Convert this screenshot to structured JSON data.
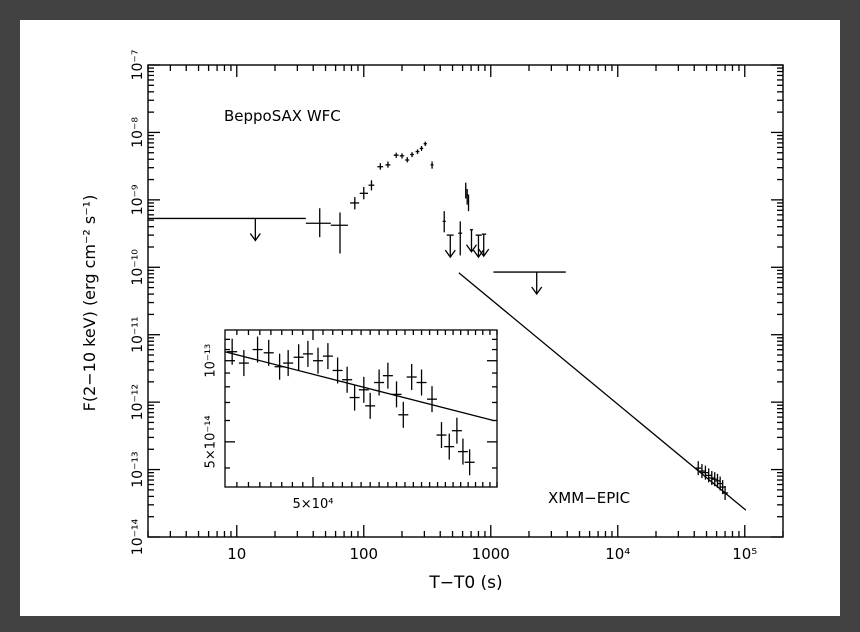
{
  "chart_data": {
    "type": "scatter",
    "title": "",
    "xlabel": "T−T0 (s)",
    "ylabel": "F(2−10 keV) (erg cm⁻² s⁻¹)",
    "xscale": "log",
    "yscale": "log",
    "xlim": [
      2,
      200000
    ],
    "ylim": [
      1e-14,
      1e-07
    ],
    "x_ticks": [
      {
        "value": 10,
        "label": "10"
      },
      {
        "value": 100,
        "label": "100"
      },
      {
        "value": 1000,
        "label": "1000"
      },
      {
        "value": 10000,
        "label": "10⁴"
      },
      {
        "value": 100000,
        "label": "10⁵"
      }
    ],
    "y_ticks": [
      {
        "value": 1e-14,
        "label": "10⁻¹⁴"
      },
      {
        "value": 1e-13,
        "label": "10⁻¹³"
      },
      {
        "value": 1e-12,
        "label": "10⁻¹²"
      },
      {
        "value": 1e-11,
        "label": "10⁻¹¹"
      },
      {
        "value": 1e-10,
        "label": "10⁻¹⁰"
      },
      {
        "value": 1e-09,
        "label": "10⁻⁹"
      },
      {
        "value": 1e-08,
        "label": "10⁻⁸"
      },
      {
        "value": 1e-07,
        "label": "10⁻⁷"
      }
    ],
    "annotations": {
      "wfc": "BeppoSAX WFC",
      "epic": "XMM−EPIC"
    },
    "series": [
      {
        "name": "BeppoSAX WFC detections",
        "points": [
          {
            "x": 45,
            "y": 4.5e-10,
            "xlo": 35,
            "xhi": 55,
            "ylo": 2.8e-10,
            "yhi": 7.5e-10
          },
          {
            "x": 65,
            "y": 4.2e-10,
            "xlo": 55,
            "xhi": 75,
            "ylo": 1.6e-10,
            "yhi": 6.5e-10
          },
          {
            "x": 85,
            "y": 9e-10,
            "xlo": 78,
            "xhi": 92,
            "ylo": 7.2e-10,
            "yhi": 1.1e-09
          },
          {
            "x": 100,
            "y": 1.25e-09,
            "xlo": 93,
            "xhi": 108,
            "ylo": 1.02e-09,
            "yhi": 1.55e-09
          },
          {
            "x": 115,
            "y": 1.65e-09,
            "xlo": 109,
            "xhi": 121,
            "ylo": 1.38e-09,
            "yhi": 1.95e-09
          },
          {
            "x": 135,
            "y": 3.1e-09,
            "xlo": 128,
            "xhi": 142,
            "ylo": 2.8e-09,
            "yhi": 3.5e-09
          },
          {
            "x": 155,
            "y": 3.3e-09,
            "xlo": 148,
            "xhi": 162,
            "ylo": 3e-09,
            "yhi": 3.7e-09
          },
          {
            "x": 180,
            "y": 4.6e-09,
            "xlo": 172,
            "xhi": 188,
            "ylo": 4.2e-09,
            "yhi": 5e-09
          },
          {
            "x": 200,
            "y": 4.5e-09,
            "xlo": 192,
            "xhi": 208,
            "ylo": 4.1e-09,
            "yhi": 4.9e-09
          },
          {
            "x": 220,
            "y": 3.9e-09,
            "xlo": 212,
            "xhi": 228,
            "ylo": 3.6e-09,
            "yhi": 4.3e-09
          },
          {
            "x": 240,
            "y": 4.7e-09,
            "xlo": 232,
            "xhi": 248,
            "ylo": 4.3e-09,
            "yhi": 5.1e-09
          },
          {
            "x": 265,
            "y": 5.2e-09,
            "xlo": 256,
            "xhi": 274,
            "ylo": 4.8e-09,
            "yhi": 5.6e-09
          },
          {
            "x": 285,
            "y": 5.8e-09,
            "xlo": 276,
            "xhi": 294,
            "ylo": 5.3e-09,
            "yhi": 6.3e-09
          },
          {
            "x": 305,
            "y": 6.8e-09,
            "xlo": 296,
            "xhi": 314,
            "ylo": 6.3e-09,
            "yhi": 7.3e-09
          },
          {
            "x": 345,
            "y": 3.3e-09,
            "xlo": 336,
            "xhi": 354,
            "ylo": 2.9e-09,
            "yhi": 3.7e-09
          },
          {
            "x": 430,
            "y": 4.8e-10,
            "xlo": 418,
            "xhi": 442,
            "ylo": 3.3e-10,
            "yhi": 6.8e-10
          },
          {
            "x": 575,
            "y": 3.2e-10,
            "xlo": 555,
            "xhi": 595,
            "ylo": 1.5e-10,
            "yhi": 4.8e-10
          },
          {
            "x": 635,
            "y": 1.55e-09,
            "xlo": 628,
            "xhi": 642,
            "ylo": 1.05e-09,
            "yhi": 1.8e-09
          },
          {
            "x": 652,
            "y": 1.2e-09,
            "xlo": 645,
            "xhi": 659,
            "ylo": 8.5e-10,
            "yhi": 1.45e-09
          },
          {
            "x": 668,
            "y": 9.5e-10,
            "xlo": 661,
            "xhi": 675,
            "ylo": 6.8e-10,
            "yhi": 1.2e-09
          }
        ]
      },
      {
        "name": "Upper limits",
        "points": [
          {
            "x": 14,
            "y": 5.3e-10,
            "xlo": 2,
            "xhi": 35
          },
          {
            "x": 480,
            "y": 3e-10,
            "xlo": 450,
            "xhi": 510
          },
          {
            "x": 705,
            "y": 3.6e-10,
            "xlo": 685,
            "xhi": 725
          },
          {
            "x": 800,
            "y": 3e-10,
            "xlo": 760,
            "xhi": 850
          },
          {
            "x": 880,
            "y": 3.1e-10,
            "xlo": 850,
            "xhi": 920
          },
          {
            "x": 2300,
            "y": 8.5e-11,
            "xlo": 1050,
            "xhi": 3900
          }
        ]
      },
      {
        "name": "XMM−EPIC",
        "points": [
          {
            "x": 43000,
            "y": 1.05e-13
          },
          {
            "x": 46000,
            "y": 9.5e-14
          },
          {
            "x": 49000,
            "y": 9e-14
          },
          {
            "x": 52000,
            "y": 8.2e-14
          },
          {
            "x": 55000,
            "y": 7.5e-14
          },
          {
            "x": 58000,
            "y": 7.2e-14
          },
          {
            "x": 61000,
            "y": 6.8e-14
          },
          {
            "x": 64000,
            "y": 6.2e-14
          },
          {
            "x": 67000,
            "y": 5.5e-14
          },
          {
            "x": 70000,
            "y": 4.5e-14
          }
        ]
      }
    ],
    "model_line": {
      "name": "Power-law decay",
      "points": [
        [
          560,
          8.3e-11
        ],
        [
          102000,
          2.5e-14
        ]
      ]
    },
    "inset": {
      "xscale": "log",
      "yscale": "log",
      "xlim": [
        42000,
        72000
      ],
      "ylim": [
        3.4e-14,
        1.3e-13
      ],
      "x_tick": {
        "value": 50000,
        "label": "5×10⁴"
      },
      "y_ticks": [
        {
          "value": 1e-13,
          "label": "10⁻¹³"
        },
        {
          "value": 5e-14,
          "label": "5×10⁻¹⁴"
        }
      ],
      "points": [
        {
          "x": 42600,
          "y": 1.08e-13
        },
        {
          "x": 43600,
          "y": 9.8e-14
        },
        {
          "x": 44800,
          "y": 1.1e-13
        },
        {
          "x": 45800,
          "y": 1.07e-13
        },
        {
          "x": 46800,
          "y": 9.5e-14
        },
        {
          "x": 47600,
          "y": 9.8e-14
        },
        {
          "x": 48600,
          "y": 1.03e-13
        },
        {
          "x": 49500,
          "y": 1.06e-13
        },
        {
          "x": 50500,
          "y": 1e-13
        },
        {
          "x": 51500,
          "y": 1.04e-13
        },
        {
          "x": 52500,
          "y": 9.2e-14
        },
        {
          "x": 53500,
          "y": 8.5e-14
        },
        {
          "x": 54300,
          "y": 7.3e-14
        },
        {
          "x": 55300,
          "y": 7.8e-14
        },
        {
          "x": 56000,
          "y": 6.8e-14
        },
        {
          "x": 57000,
          "y": 8.3e-14
        },
        {
          "x": 58000,
          "y": 8.8e-14
        },
        {
          "x": 59000,
          "y": 7.5e-14
        },
        {
          "x": 59800,
          "y": 6.3e-14
        },
        {
          "x": 60800,
          "y": 8.7e-14
        },
        {
          "x": 62000,
          "y": 8.3e-14
        },
        {
          "x": 63300,
          "y": 7.2e-14
        },
        {
          "x": 64500,
          "y": 5.3e-14
        },
        {
          "x": 65500,
          "y": 4.8e-14
        },
        {
          "x": 66500,
          "y": 5.5e-14
        },
        {
          "x": 67300,
          "y": 4.6e-14
        },
        {
          "x": 68200,
          "y": 4.2e-14
        }
      ],
      "model_line": [
        [
          42000,
          1.08e-13
        ],
        [
          71500,
          6e-14
        ]
      ]
    }
  }
}
